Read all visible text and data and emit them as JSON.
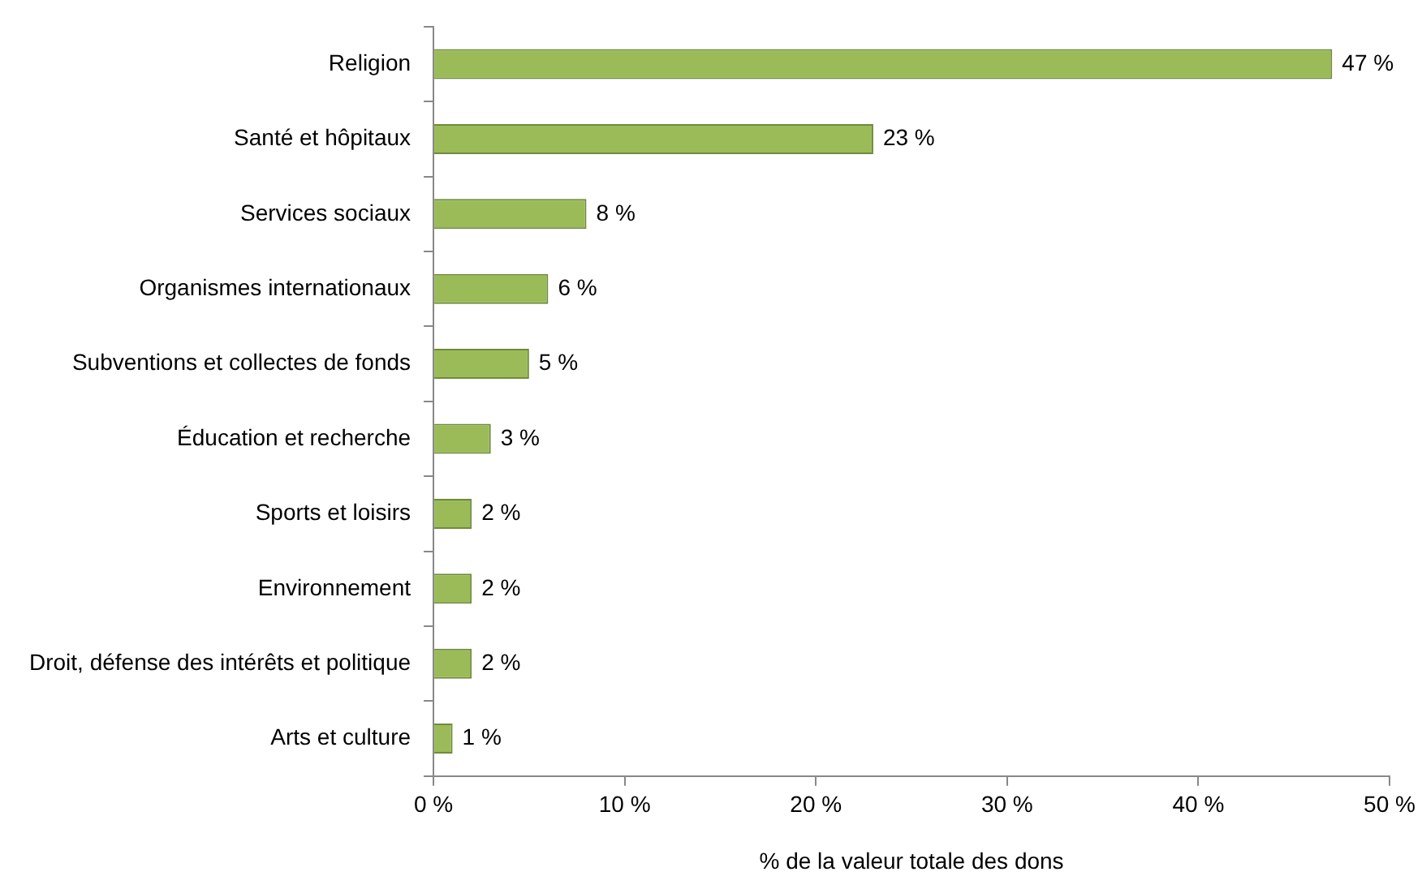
{
  "chart_data": {
    "type": "bar",
    "orientation": "horizontal",
    "xlabel": "% de la valeur totale des dons",
    "categories": [
      "Religion",
      "Santé et hôpitaux",
      "Services sociaux",
      "Organismes internationaux",
      "Subventions et collectes de fonds",
      "Éducation et recherche",
      "Sports et loisirs",
      "Environnement",
      "Droit, défense des intérêts et politique",
      "Arts et culture"
    ],
    "values": [
      47,
      23,
      8,
      6,
      5,
      3,
      2,
      2,
      2,
      1
    ],
    "value_labels": [
      "47 %",
      "23 %",
      "8 %",
      "6 %",
      "5 %",
      "3 %",
      "2 %",
      "2 %",
      "2 %",
      "1 %"
    ],
    "color": "#9bbb59",
    "xlim": [
      0,
      50
    ],
    "xticks": [
      {
        "value": 0,
        "label": "0 %"
      },
      {
        "value": 10,
        "label": "10 %"
      },
      {
        "value": 20,
        "label": "20 %"
      },
      {
        "value": 30,
        "label": "30 %"
      },
      {
        "value": 40,
        "label": "40 %"
      },
      {
        "value": 50,
        "label": "50 %"
      }
    ],
    "grid": false,
    "legend": false
  }
}
